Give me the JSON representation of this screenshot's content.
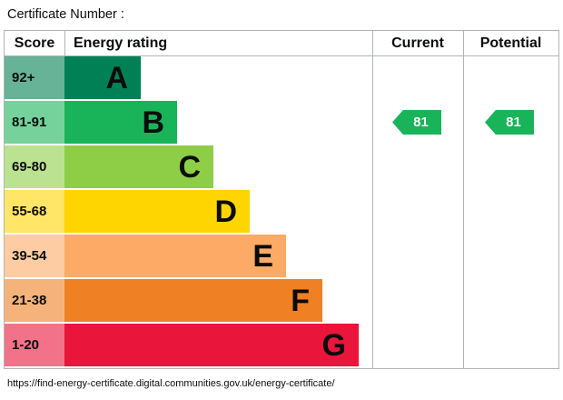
{
  "title": "Certificate Number :",
  "header": {
    "score": "Score",
    "energy_rating": "Energy rating",
    "current": "Current",
    "potential": "Potential"
  },
  "bands": [
    {
      "range": "92+",
      "letter": "A",
      "color": "#008054",
      "tint": "#66b398"
    },
    {
      "range": "81-91",
      "letter": "B",
      "color": "#19b459",
      "tint": "#75d29b"
    },
    {
      "range": "69-80",
      "letter": "C",
      "color": "#8dce46",
      "tint": "#bbe290"
    },
    {
      "range": "55-68",
      "letter": "D",
      "color": "#ffd500",
      "tint": "#ffe666"
    },
    {
      "range": "39-54",
      "letter": "E",
      "color": "#fcaa65",
      "tint": "#fdcca3"
    },
    {
      "range": "21-38",
      "letter": "F",
      "color": "#ef8023",
      "tint": "#f5b37b"
    },
    {
      "range": "1-20",
      "letter": "G",
      "color": "#e9153b",
      "tint": "#f27389"
    }
  ],
  "current": {
    "value": "81",
    "color": "#19b459"
  },
  "potential": {
    "value": "81",
    "color": "#19b459"
  },
  "footer_url": "https://find-energy-certificate.digital.communities.gov.uk/energy-certificate/",
  "chart_data": {
    "type": "bar",
    "title": "Energy rating",
    "categories": [
      "A",
      "B",
      "C",
      "D",
      "E",
      "F",
      "G"
    ],
    "score_ranges": [
      "92+",
      "81-91",
      "69-80",
      "55-68",
      "39-54",
      "21-38",
      "1-20"
    ],
    "band_colors": [
      "#008054",
      "#19b459",
      "#8dce46",
      "#ffd500",
      "#fcaa65",
      "#ef8023",
      "#e9153b"
    ],
    "bar_relative_lengths": [
      1,
      2,
      3,
      4,
      5,
      6,
      7
    ],
    "current": {
      "value": 81,
      "band": "B"
    },
    "potential": {
      "value": 81,
      "band": "B"
    },
    "legend_position": "none",
    "grid": false
  }
}
